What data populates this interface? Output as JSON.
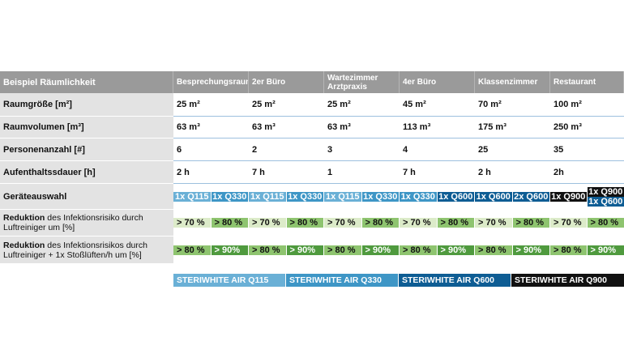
{
  "header": {
    "first": "Beispiel Räumlichkeit",
    "rooms": [
      "Besprechungsraum",
      "2er Büro",
      "Wartezimmer Arztpraxis",
      "4er Büro",
      "Klassenzimmer",
      "Restaurant"
    ]
  },
  "rows": [
    {
      "label": "Raumgröße [m²]",
      "values": [
        "25 m²",
        "25 m²",
        "25 m²",
        "45 m²",
        "70 m²",
        "100 m²"
      ]
    },
    {
      "label": "Raumvolumen [m³]",
      "values": [
        "63 m³",
        "63 m³",
        "63 m³",
        "113 m³",
        "175 m³",
        "250 m³"
      ]
    },
    {
      "label": "Personenanzahl [#]",
      "values": [
        "6",
        "2",
        "3",
        "4",
        "25",
        "35"
      ]
    },
    {
      "label": "Aufenthaltssdauer [h]",
      "values": [
        "2 h",
        "7 h",
        "1",
        "7 h",
        "2 h",
        "2h"
      ]
    }
  ],
  "devices": {
    "label": "Geräteauswahl",
    "cells": [
      "1x Q115",
      "1x Q330",
      "1x Q115",
      "1x Q330",
      "1x Q115",
      "1x Q330",
      "1x Q330",
      "1x Q600",
      "1x Q600",
      "2x Q600",
      "1x Q900"
    ],
    "last_split": [
      "1x Q900",
      "1x Q600"
    ]
  },
  "reduction1": {
    "label_bold": "Reduktion",
    "label_rest": " des Infektionsrisiko durch Luftreiniger um [%]",
    "values": [
      "> 70 %",
      "> 80 %",
      "> 70 %",
      "> 80 %",
      "> 70 %",
      "> 80 %",
      "> 70 %",
      "> 80 %",
      "> 70 %",
      "> 80 %",
      "> 70 %",
      "> 80 %"
    ]
  },
  "reduction2": {
    "label_bold": "Reduktion",
    "label_rest": " des Infektionsrisikos durch Luftreiniger + 1x Stoßlüften/h um [%]",
    "values": [
      "> 80 %",
      "> 90%",
      "> 80 %",
      "> 90%",
      "> 80 %",
      "> 90%",
      "> 80 %",
      "> 90%",
      "> 80 %",
      "> 90%",
      "> 80 %",
      "> 90%"
    ]
  },
  "legend": [
    "STERIWHITE AIR Q115",
    "STERIWHITE AIR Q330",
    "STERIWHITE AIR Q600",
    "STERIWHITE AIR Q900"
  ],
  "colors": {
    "q115": "#6ab0d6",
    "q330": "#3e96c6",
    "q600": "#0e5d94",
    "q900": "#111111",
    "light_green": "#dcebc9",
    "mid_green": "#8ec46f",
    "dark_green": "#4f9a3e"
  }
}
